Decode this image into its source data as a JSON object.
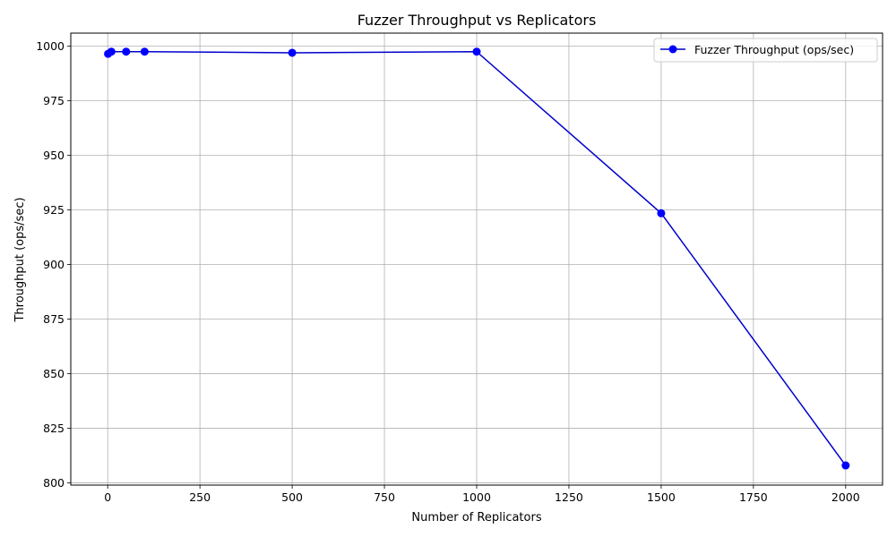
{
  "chart_data": {
    "type": "line",
    "title": "Fuzzer Throughput vs Replicators",
    "xlabel": "Number of Replicators",
    "ylabel": "Throughput (ops/sec)",
    "xlim": [
      -100,
      2100
    ],
    "ylim": [
      799,
      1006
    ],
    "xticks": [
      0,
      250,
      500,
      750,
      1000,
      1250,
      1500,
      1750,
      2000
    ],
    "yticks": [
      800,
      825,
      850,
      875,
      900,
      925,
      950,
      975,
      1000
    ],
    "grid": true,
    "legend_position": "top-right",
    "series": [
      {
        "name": "Fuzzer Throughput (ops/sec)",
        "color": "#0000cc",
        "marker_color": "#0000ff",
        "x": [
          1,
          10,
          50,
          100,
          500,
          1000,
          1500,
          2000
        ],
        "y": [
          996.5,
          997.5,
          997.5,
          997.5,
          997.0,
          997.5,
          923.5,
          808.0
        ]
      }
    ]
  }
}
